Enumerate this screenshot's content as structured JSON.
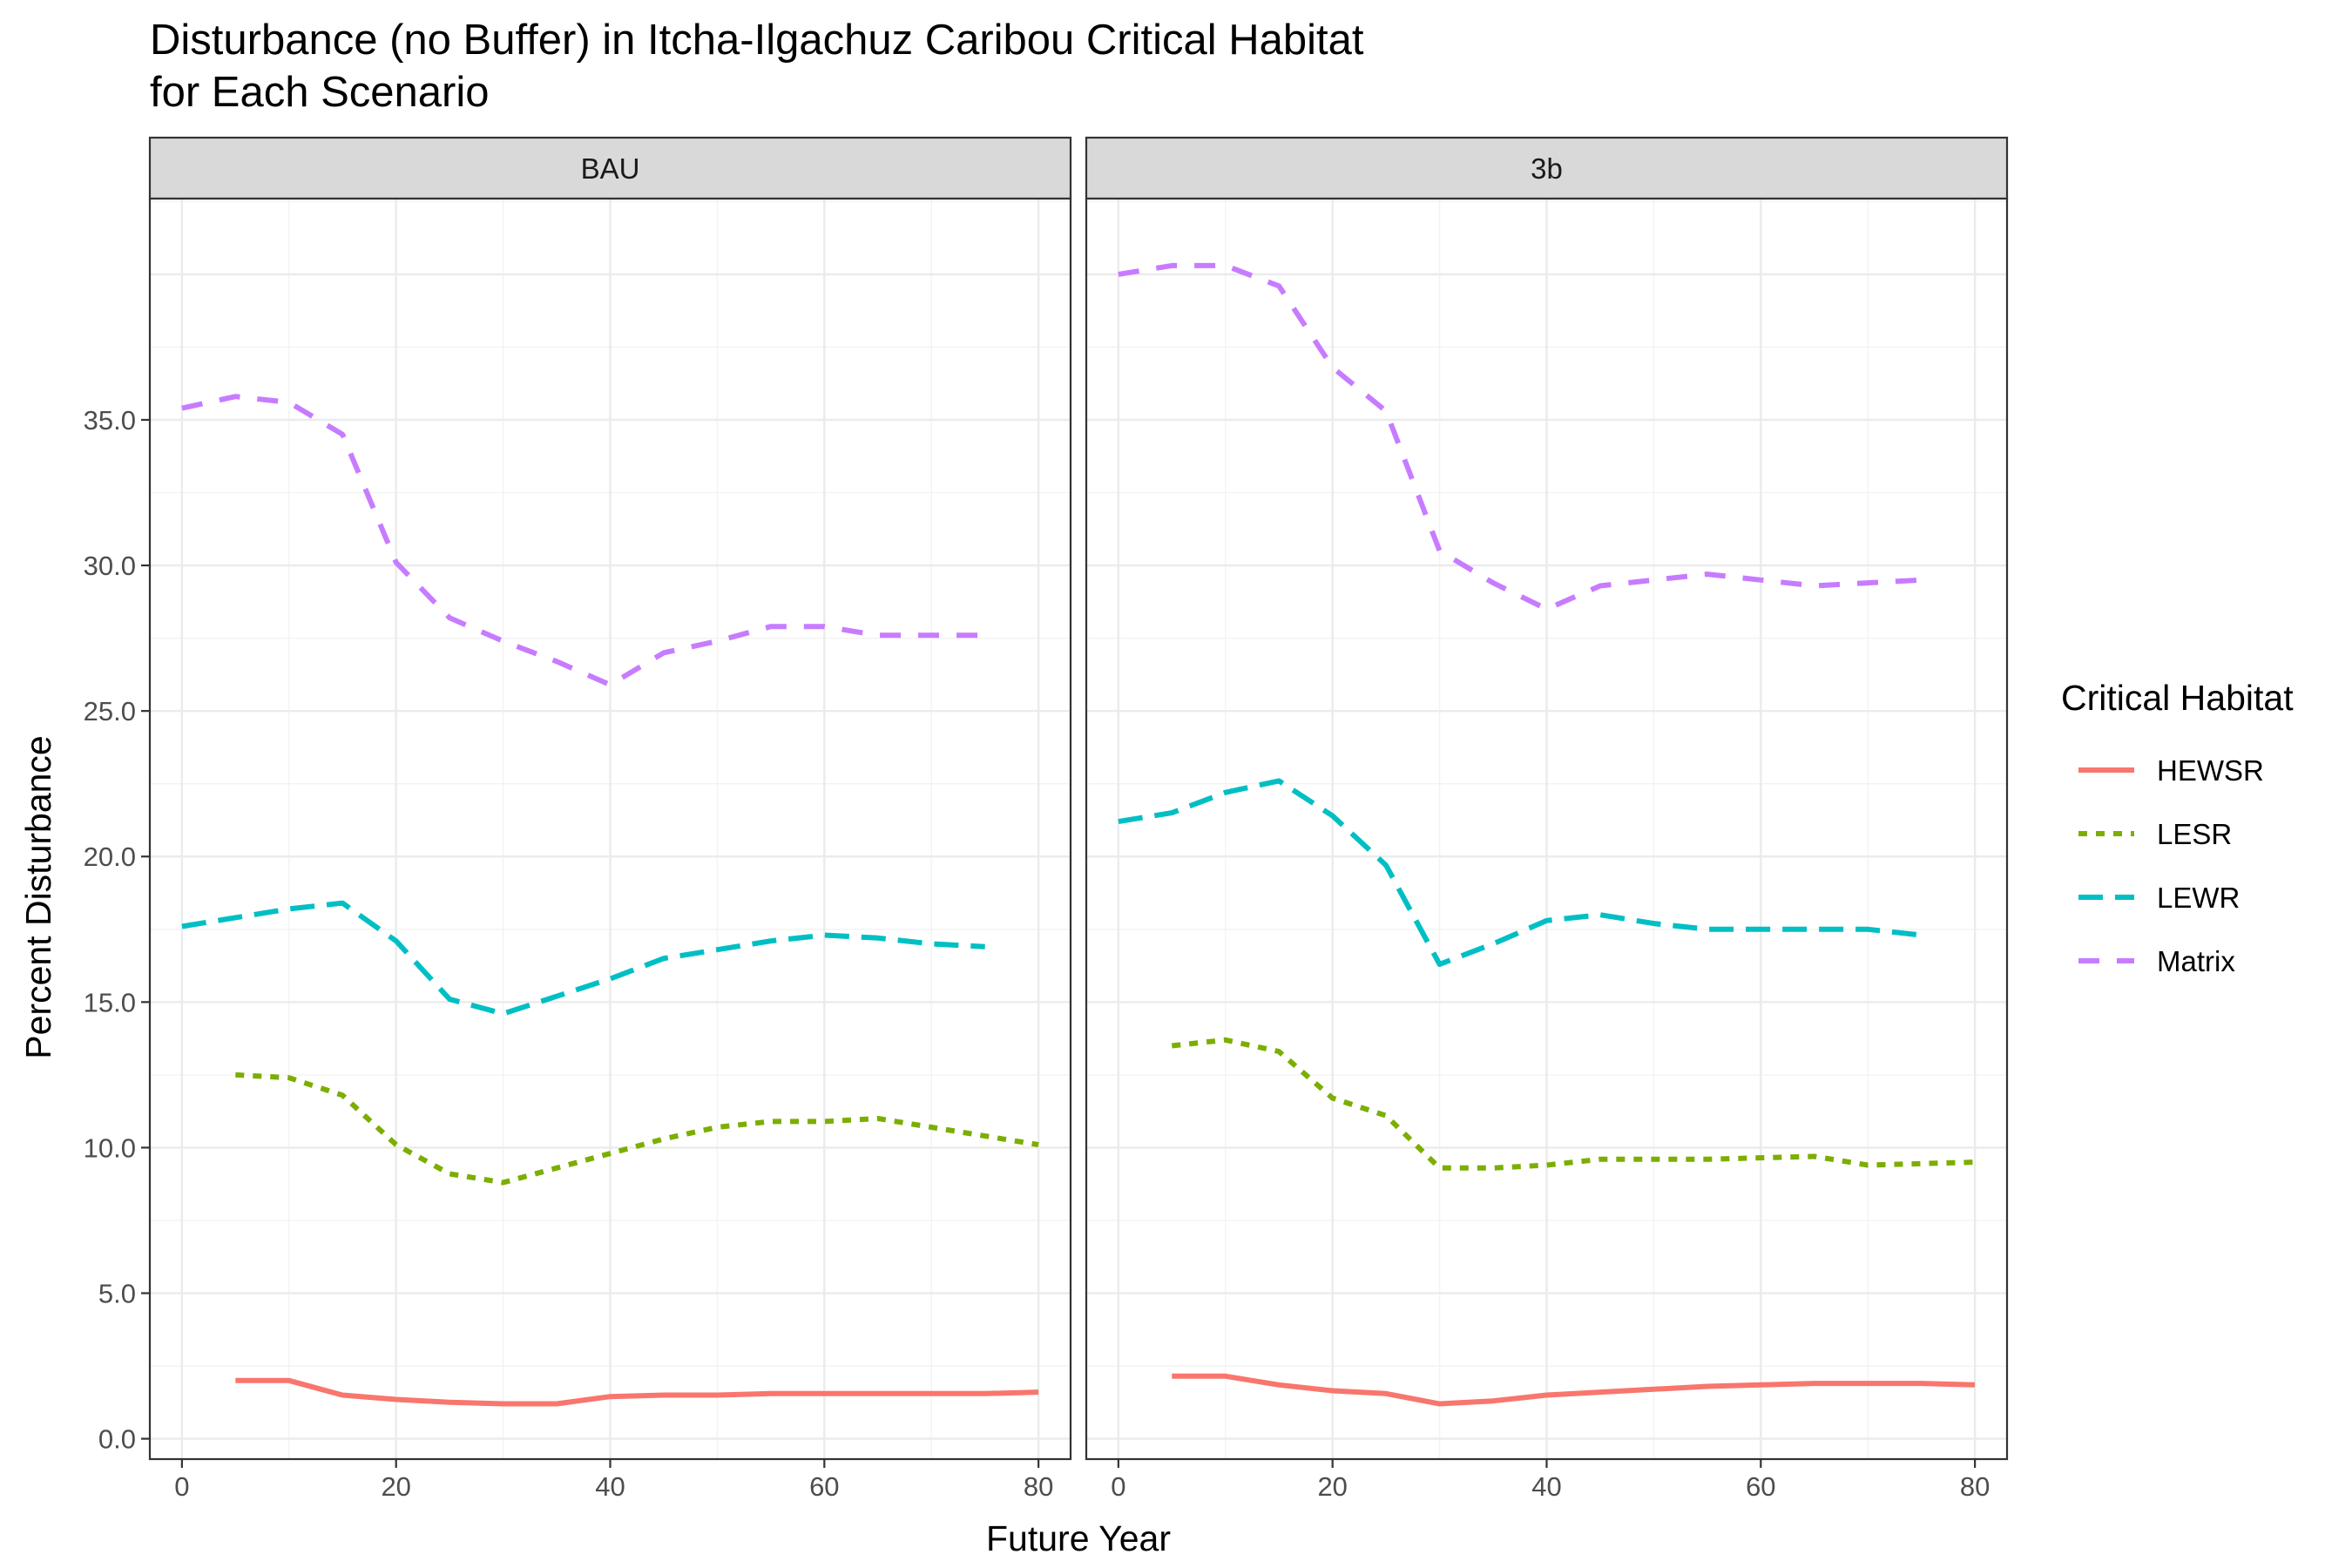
{
  "chart_data": {
    "type": "line",
    "title": "Disturbance (no Buffer) in Itcha-Ilgachuz Caribou Critical Habitat",
    "title_line2": "for Each Scenario",
    "xlabel": "Future Year",
    "ylabel": "Percent Disturbance",
    "xlim": [
      -3,
      83
    ],
    "ylim": [
      -0.7,
      42.6
    ],
    "xticks": [
      0,
      20,
      40,
      60,
      80
    ],
    "xtick_labels": [
      "0",
      "20",
      "40",
      "60",
      "80"
    ],
    "yticks": [
      0,
      5,
      10,
      15,
      20,
      25,
      30,
      35
    ],
    "ytick_labels": [
      "0.0",
      "5.0",
      "10.0",
      "15.0",
      "20.0",
      "25.0",
      "30.0",
      "35.0"
    ],
    "grid": true,
    "legend": {
      "title": "Critical Habitat",
      "position": "right",
      "entries": [
        "HEWSR",
        "LESR",
        "LEWR",
        "Matrix"
      ]
    },
    "colors": {
      "HEWSR": "#F8766D",
      "LESR": "#7CAE00",
      "LEWR": "#00BFC4",
      "Matrix": "#C77CFF"
    },
    "panels": [
      {
        "strip": "BAU",
        "series": [
          {
            "name": "HEWSR",
            "x": [
              5,
              10,
              15,
              20,
              25,
              30,
              35,
              40,
              45,
              50,
              55,
              60,
              65,
              70,
              75,
              80
            ],
            "y": [
              2.0,
              2.0,
              1.5,
              1.35,
              1.25,
              1.2,
              1.2,
              1.45,
              1.5,
              1.5,
              1.55,
              1.55,
              1.55,
              1.55,
              1.55,
              1.6
            ]
          },
          {
            "name": "LESR",
            "x": [
              5,
              10,
              15,
              20,
              25,
              30,
              35,
              40,
              45,
              50,
              55,
              60,
              65,
              70,
              75,
              80
            ],
            "y": [
              12.5,
              12.4,
              11.8,
              10.1,
              9.1,
              8.8,
              9.3,
              9.8,
              10.3,
              10.7,
              10.9,
              10.9,
              11.0,
              10.7,
              10.4,
              10.1
            ]
          },
          {
            "name": "LEWR",
            "x": [
              0,
              5,
              10,
              15,
              20,
              25,
              30,
              35,
              40,
              45,
              50,
              55,
              60,
              65,
              70,
              75
            ],
            "y": [
              17.6,
              17.9,
              18.2,
              18.4,
              17.1,
              15.1,
              14.6,
              15.2,
              15.8,
              16.5,
              16.8,
              17.1,
              17.3,
              17.2,
              17.0,
              16.9
            ]
          },
          {
            "name": "Matrix",
            "x": [
              0,
              5,
              10,
              15,
              20,
              25,
              30,
              35,
              40,
              45,
              50,
              55,
              60,
              65,
              70,
              75
            ],
            "y": [
              35.4,
              35.8,
              35.6,
              34.5,
              30.1,
              28.2,
              27.4,
              26.7,
              25.9,
              27.0,
              27.4,
              27.9,
              27.9,
              27.6,
              27.6,
              27.6
            ]
          }
        ]
      },
      {
        "strip": "3b",
        "series": [
          {
            "name": "HEWSR",
            "x": [
              5,
              10,
              15,
              20,
              25,
              30,
              35,
              40,
              45,
              50,
              55,
              60,
              65,
              70,
              75,
              80
            ],
            "y": [
              2.15,
              2.15,
              1.85,
              1.65,
              1.55,
              1.2,
              1.3,
              1.5,
              1.6,
              1.7,
              1.8,
              1.85,
              1.9,
              1.9,
              1.9,
              1.85
            ]
          },
          {
            "name": "LESR",
            "x": [
              5,
              10,
              15,
              20,
              25,
              30,
              35,
              40,
              45,
              50,
              55,
              60,
              65,
              70,
              75,
              80
            ],
            "y": [
              13.5,
              13.7,
              13.3,
              11.7,
              11.1,
              9.3,
              9.3,
              9.4,
              9.6,
              9.6,
              9.6,
              9.65,
              9.7,
              9.4,
              9.45,
              9.5
            ]
          },
          {
            "name": "LEWR",
            "x": [
              0,
              5,
              10,
              15,
              20,
              25,
              30,
              35,
              40,
              45,
              50,
              55,
              60,
              65,
              70,
              75
            ],
            "y": [
              21.2,
              21.5,
              22.2,
              22.6,
              21.4,
              19.7,
              16.3,
              17.0,
              17.8,
              18.0,
              17.7,
              17.5,
              17.5,
              17.5,
              17.5,
              17.3
            ]
          },
          {
            "name": "Matrix",
            "x": [
              0,
              5,
              10,
              15,
              20,
              25,
              30,
              35,
              40,
              45,
              50,
              55,
              60,
              65,
              70,
              75
            ],
            "y": [
              40.0,
              40.3,
              40.3,
              39.6,
              36.8,
              35.3,
              30.5,
              29.4,
              28.5,
              29.3,
              29.5,
              29.7,
              29.5,
              29.3,
              29.4,
              29.5
            ]
          }
        ]
      }
    ]
  }
}
